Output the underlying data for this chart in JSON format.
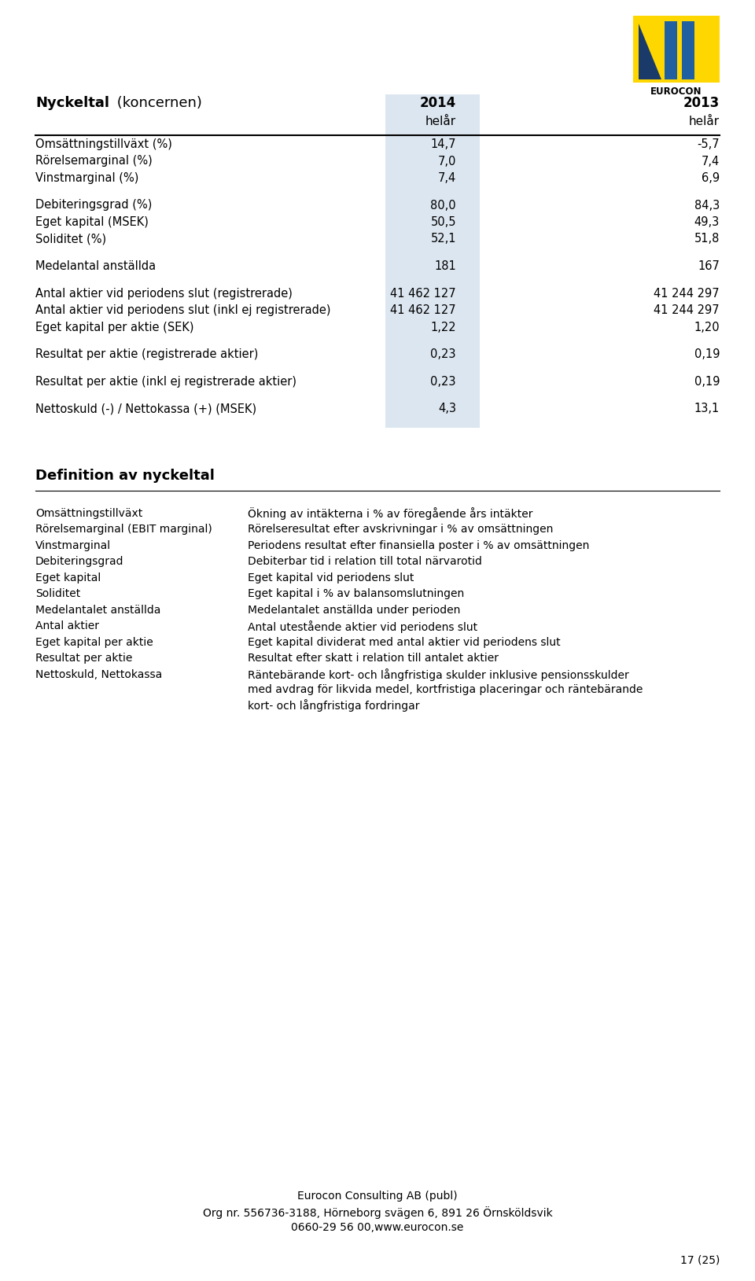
{
  "title_bold": "Nyckeltal",
  "title_normal": " (koncernen)",
  "col2014": "2014",
  "col2013": "2013",
  "subheader": "helår",
  "bg_color": "#ffffff",
  "highlight_color": "#dce6f0",
  "table_rows": [
    {
      "label": "Omsättningstillväxt (%)",
      "v2014": "14,7",
      "v2013": "-5,7",
      "gap_before": false
    },
    {
      "label": "Rörelsemarginal (%)",
      "v2014": "7,0",
      "v2013": "7,4",
      "gap_before": false
    },
    {
      "label": "Vinstmarginal (%)",
      "v2014": "7,4",
      "v2013": "6,9",
      "gap_before": false
    },
    {
      "label": "Debiteringsgrad (%)",
      "v2014": "80,0",
      "v2013": "84,3",
      "gap_before": true
    },
    {
      "label": "Eget kapital (MSEK)",
      "v2014": "50,5",
      "v2013": "49,3",
      "gap_before": false
    },
    {
      "label": "Soliditet (%)",
      "v2014": "52,1",
      "v2013": "51,8",
      "gap_before": false
    },
    {
      "label": "Medelantal anställda",
      "v2014": "181",
      "v2013": "167",
      "gap_before": true
    },
    {
      "label": "Antal aktier vid periodens slut (registrerade)",
      "v2014": "41 462 127",
      "v2013": "41 244 297",
      "gap_before": true
    },
    {
      "label": "Antal aktier vid periodens slut (inkl ej registrerade)",
      "v2014": "41 462 127",
      "v2013": "41 244 297",
      "gap_before": false
    },
    {
      "label": "Eget kapital per aktie (SEK)",
      "v2014": "1,22",
      "v2013": "1,20",
      "gap_before": false
    },
    {
      "label": "Resultat per aktie (registrerade aktier)",
      "v2014": "0,23",
      "v2013": "0,19",
      "gap_before": true
    },
    {
      "label": "Resultat per aktie (inkl ej registrerade aktier)",
      "v2014": "0,23",
      "v2013": "0,19",
      "gap_before": true
    },
    {
      "label": "Nettoskuld (-) / Nettokassa (+) (MSEK)",
      "v2014": "4,3",
      "v2013": "13,1",
      "gap_before": true
    }
  ],
  "definition_title": "Definition av nyckeltal",
  "definitions": [
    {
      "term": "Omsättningstillväxt",
      "desc": "Ökning av intäkterna i % av föregående års intäkter"
    },
    {
      "term": "Rörelsemarginal (EBIT marginal)",
      "desc": "Rörelseresultat efter avskrivningar i % av omsättningen"
    },
    {
      "term": "Vinstmarginal",
      "desc": "Periodens resultat efter finansiella poster i % av omsättningen"
    },
    {
      "term": "Debiteringsgrad",
      "desc": "Debiterbar tid i relation till total närvarotid"
    },
    {
      "term": "Eget kapital",
      "desc": "Eget kapital vid periodens slut"
    },
    {
      "term": "Soliditet",
      "desc": "Eget kapital i % av balansomslutningen"
    },
    {
      "term": "Medelantalet anställda",
      "desc": "Medelantalet anställda under perioden"
    },
    {
      "term": "Antal aktier",
      "desc": "Antal utestående aktier vid periodens slut"
    },
    {
      "term": "Eget kapital per aktie",
      "desc": "Eget kapital dividerat med antal aktier vid periodens slut"
    },
    {
      "term": "Resultat per aktie",
      "desc": "Resultat efter skatt i relation till antalet aktier"
    },
    {
      "term": "Nettoskuld, Nettokassa",
      "desc": "Räntebärande kort- och långfristiga skulder inklusive pensionsskulder\nmed avdrag för likvida medel, kortfristiga placeringar och räntebärande\nkort- och långfristiga fordringar"
    }
  ],
  "footer_line1": "Eurocon Consulting AB (publ)",
  "footer_line2": "Org nr. 556736-3188, Hörneborg svägen 6, 891 26 Örnsköldsvik",
  "footer_line3": "0660-29 56 00,www.eurocon.se",
  "page_number": "17 (25)",
  "logo_yellow": "#FFD700",
  "logo_blue": "#2060A0",
  "logo_dark": "#1a3a6a"
}
